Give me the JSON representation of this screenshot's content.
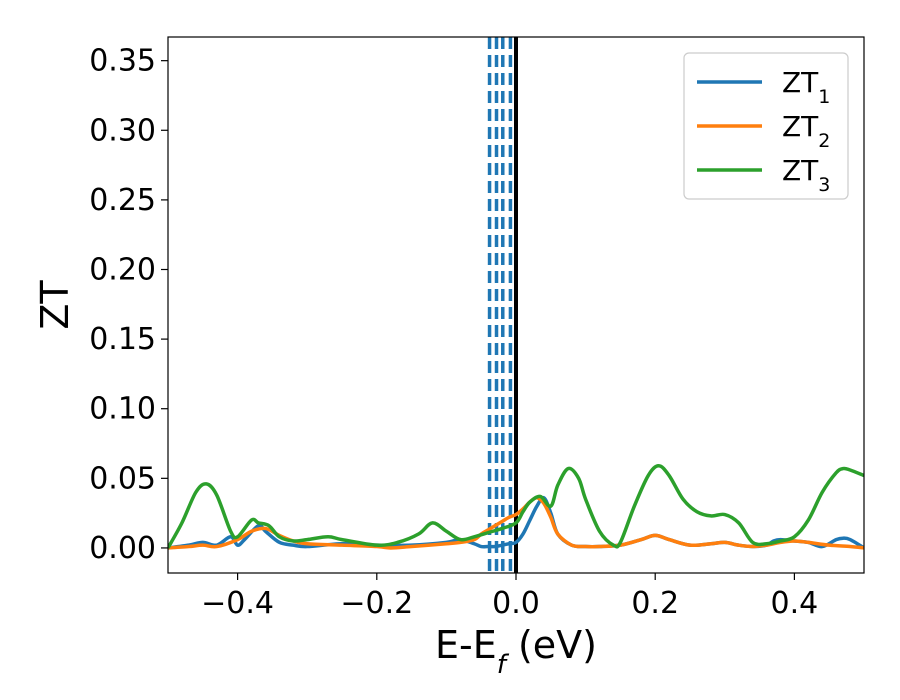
{
  "chart_data": {
    "type": "line",
    "xlabel_main": "E-E",
    "xlabel_sub": "f",
    "xlabel_unit": " (eV)",
    "ylabel": "ZT",
    "xlim": [
      -0.5,
      0.5
    ],
    "ylim": [
      -0.018,
      0.367
    ],
    "xticks": [
      -0.4,
      -0.2,
      0.0,
      0.2,
      0.4
    ],
    "xtick_labels": [
      "−0.4",
      "−0.2",
      "0.0",
      "0.2",
      "0.4"
    ],
    "yticks": [
      0.0,
      0.05,
      0.1,
      0.15,
      0.2,
      0.25,
      0.3,
      0.35
    ],
    "ytick_labels": [
      "0.00",
      "0.05",
      "0.10",
      "0.15",
      "0.20",
      "0.25",
      "0.30",
      "0.35"
    ],
    "legend_position": "top-right",
    "vertical_lines": [
      {
        "x": 0.0,
        "style": "solid",
        "color": "#000000"
      },
      {
        "x": -0.008,
        "style": "dashed",
        "color": "#1f77b4"
      },
      {
        "x": -0.019,
        "style": "dashed",
        "color": "#1f77b4"
      },
      {
        "x": -0.028,
        "style": "dashed",
        "color": "#1f77b4"
      },
      {
        "x": -0.038,
        "style": "dashed",
        "color": "#1f77b4"
      }
    ],
    "series": [
      {
        "name": "ZT",
        "sub": "1",
        "color": "#1f77b4",
        "x": [
          -0.5,
          -0.47,
          -0.45,
          -0.43,
          -0.41,
          -0.4,
          -0.39,
          -0.37,
          -0.36,
          -0.34,
          -0.32,
          -0.3,
          -0.25,
          -0.2,
          -0.15,
          -0.1,
          -0.08,
          -0.06,
          -0.05,
          -0.04,
          -0.03,
          -0.02,
          -0.01,
          0.0,
          0.01,
          0.02,
          0.03,
          0.04,
          0.05,
          0.06,
          0.08,
          0.1,
          0.12,
          0.15,
          0.18,
          0.2,
          0.22,
          0.25,
          0.28,
          0.3,
          0.32,
          0.34,
          0.36,
          0.37,
          0.38,
          0.4,
          0.42,
          0.44,
          0.46,
          0.47,
          0.48,
          0.5
        ],
        "y": [
          0.0,
          0.002,
          0.004,
          0.002,
          0.008,
          0.002,
          0.006,
          0.016,
          0.012,
          0.004,
          0.002,
          0.001,
          0.003,
          0.002,
          0.002,
          0.004,
          0.006,
          0.003,
          0.001,
          0.001,
          0.001,
          0.002,
          0.003,
          0.004,
          0.01,
          0.02,
          0.03,
          0.036,
          0.025,
          0.01,
          0.002,
          0.001,
          0.001,
          0.002,
          0.006,
          0.009,
          0.006,
          0.002,
          0.003,
          0.004,
          0.002,
          0.001,
          0.002,
          0.005,
          0.006,
          0.005,
          0.004,
          0.001,
          0.006,
          0.007,
          0.006,
          0.0
        ]
      },
      {
        "name": "ZT",
        "sub": "2",
        "color": "#ff7f0e",
        "x": [
          -0.5,
          -0.47,
          -0.45,
          -0.43,
          -0.4,
          -0.38,
          -0.36,
          -0.34,
          -0.32,
          -0.3,
          -0.25,
          -0.2,
          -0.18,
          -0.15,
          -0.1,
          -0.08,
          -0.06,
          -0.05,
          -0.04,
          -0.03,
          -0.02,
          -0.01,
          0.0,
          0.01,
          0.02,
          0.03,
          0.04,
          0.05,
          0.06,
          0.08,
          0.1,
          0.12,
          0.15,
          0.18,
          0.2,
          0.22,
          0.25,
          0.28,
          0.3,
          0.32,
          0.34,
          0.36,
          0.38,
          0.4,
          0.42,
          0.45,
          0.48,
          0.5
        ],
        "y": [
          0.0,
          0.001,
          0.002,
          0.001,
          0.006,
          0.012,
          0.014,
          0.009,
          0.005,
          0.003,
          0.002,
          0.001,
          0.0,
          0.001,
          0.003,
          0.004,
          0.006,
          0.01,
          0.013,
          0.016,
          0.019,
          0.022,
          0.024,
          0.028,
          0.033,
          0.036,
          0.032,
          0.022,
          0.01,
          0.002,
          0.001,
          0.001,
          0.002,
          0.006,
          0.009,
          0.006,
          0.002,
          0.003,
          0.004,
          0.002,
          0.001,
          0.002,
          0.004,
          0.005,
          0.004,
          0.002,
          0.001,
          0.0
        ]
      },
      {
        "name": "ZT",
        "sub": "3",
        "color": "#2ca02c",
        "x": [
          -0.5,
          -0.48,
          -0.46,
          -0.445,
          -0.43,
          -0.41,
          -0.4,
          -0.38,
          -0.37,
          -0.355,
          -0.34,
          -0.32,
          -0.3,
          -0.27,
          -0.25,
          -0.2,
          -0.17,
          -0.14,
          -0.12,
          -0.1,
          -0.08,
          -0.06,
          -0.04,
          -0.02,
          0.0,
          0.01,
          0.02,
          0.035,
          0.05,
          0.06,
          0.075,
          0.09,
          0.1,
          0.12,
          0.14,
          0.15,
          0.17,
          0.19,
          0.205,
          0.22,
          0.24,
          0.26,
          0.28,
          0.3,
          0.32,
          0.34,
          0.36,
          0.38,
          0.4,
          0.42,
          0.44,
          0.46,
          0.47,
          0.48,
          0.5
        ],
        "y": [
          0.0,
          0.018,
          0.04,
          0.046,
          0.038,
          0.012,
          0.008,
          0.02,
          0.018,
          0.016,
          0.008,
          0.005,
          0.006,
          0.008,
          0.006,
          0.002,
          0.004,
          0.01,
          0.018,
          0.012,
          0.006,
          0.008,
          0.011,
          0.014,
          0.018,
          0.026,
          0.033,
          0.037,
          0.03,
          0.045,
          0.057,
          0.05,
          0.035,
          0.012,
          0.002,
          0.004,
          0.03,
          0.052,
          0.059,
          0.052,
          0.035,
          0.026,
          0.023,
          0.024,
          0.018,
          0.004,
          0.003,
          0.005,
          0.008,
          0.02,
          0.04,
          0.054,
          0.057,
          0.056,
          0.052
        ]
      }
    ]
  }
}
